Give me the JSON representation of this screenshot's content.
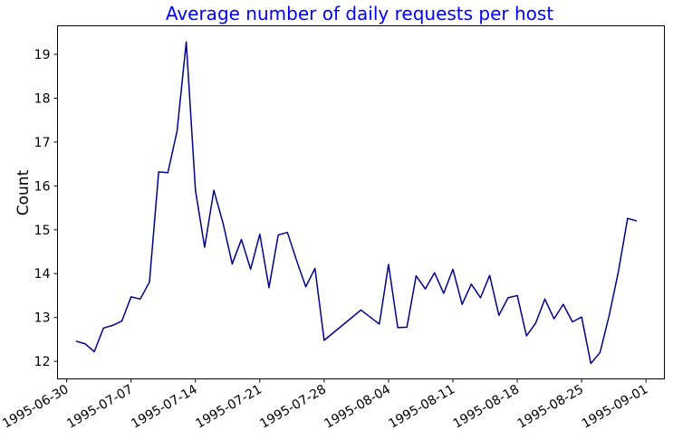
{
  "chart_data": {
    "type": "line",
    "title": "Average number of daily requests per host",
    "xlabel": "",
    "ylabel": "Count",
    "xlim": [
      "1995-06-29",
      "1995-09-03"
    ],
    "ylim": [
      11.6,
      19.65
    ],
    "x_ticks": [
      "1995-06-30",
      "1995-07-07",
      "1995-07-14",
      "1995-07-21",
      "1995-07-28",
      "1995-08-04",
      "1995-08-11",
      "1995-08-18",
      "1995-08-25",
      "1995-09-01"
    ],
    "y_ticks": [
      12,
      13,
      14,
      15,
      16,
      17,
      18,
      19
    ],
    "grid": false,
    "colors": {
      "line": "#00008b",
      "title": "#0000ff",
      "axis": "#000000"
    },
    "series": [
      {
        "x": [
          "1995-07-01",
          "1995-07-02",
          "1995-07-03",
          "1995-07-04",
          "1995-07-05",
          "1995-07-06",
          "1995-07-07",
          "1995-07-08",
          "1995-07-09",
          "1995-07-10",
          "1995-07-11",
          "1995-07-12",
          "1995-07-13",
          "1995-07-14",
          "1995-07-15",
          "1995-07-16",
          "1995-07-17",
          "1995-07-18",
          "1995-07-19",
          "1995-07-20",
          "1995-07-21",
          "1995-07-22",
          "1995-07-23",
          "1995-07-24",
          "1995-07-25",
          "1995-07-26",
          "1995-07-27",
          "1995-07-28",
          "1995-08-01",
          "1995-08-03",
          "1995-08-04",
          "1995-08-05",
          "1995-08-06",
          "1995-08-07",
          "1995-08-08",
          "1995-08-09",
          "1995-08-10",
          "1995-08-11",
          "1995-08-12",
          "1995-08-13",
          "1995-08-14",
          "1995-08-15",
          "1995-08-16",
          "1995-08-17",
          "1995-08-18",
          "1995-08-19",
          "1995-08-20",
          "1995-08-21",
          "1995-08-22",
          "1995-08-23",
          "1995-08-24",
          "1995-08-25",
          "1995-08-26",
          "1995-08-27",
          "1995-08-28",
          "1995-08-29",
          "1995-08-30",
          "1995-08-31"
        ],
        "y": [
          12.46,
          12.4,
          12.22,
          12.76,
          12.82,
          12.92,
          13.47,
          13.42,
          13.81,
          16.32,
          16.3,
          17.25,
          19.28,
          15.9,
          14.6,
          15.9,
          15.15,
          14.22,
          14.78,
          14.1,
          14.9,
          13.68,
          14.88,
          14.94,
          14.3,
          13.7,
          14.12,
          12.48,
          13.17,
          12.85,
          14.21,
          12.77,
          12.78,
          13.95,
          13.65,
          14.02,
          13.55,
          14.1,
          13.3,
          13.76,
          13.45,
          13.96,
          13.05,
          13.45,
          13.5,
          12.58,
          12.87,
          13.42,
          12.97,
          13.3,
          12.9,
          13.01,
          11.95,
          12.2,
          13.05,
          14.05,
          15.26,
          15.2
        ]
      }
    ]
  }
}
